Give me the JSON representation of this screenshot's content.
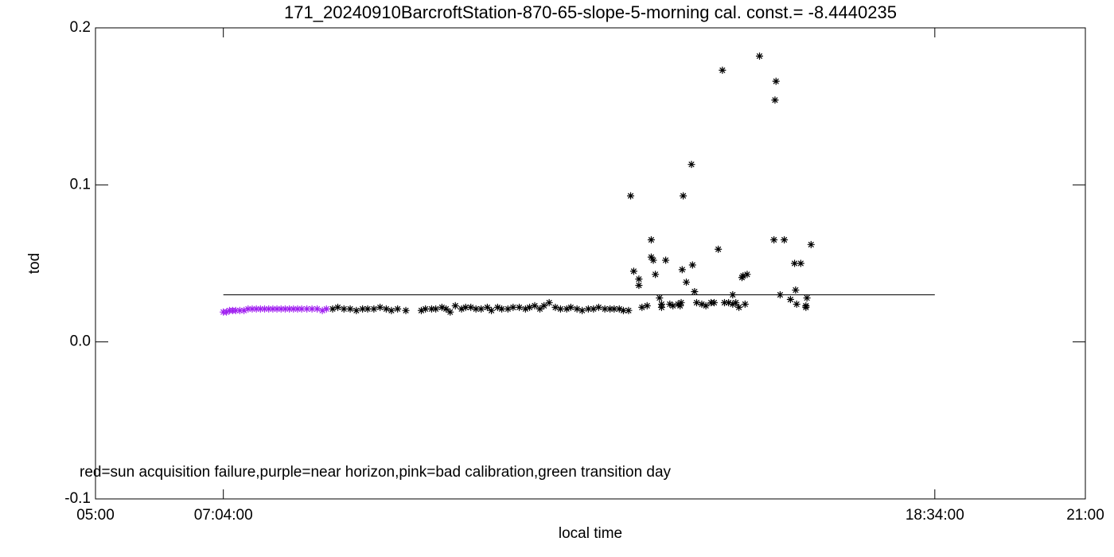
{
  "chart_data": {
    "type": "scatter",
    "title": "171_20240910BarcroftStation-870-65-slope-5-morning cal. const.= -8.4440235",
    "x_label": "local time",
    "y_label": "tod",
    "annotation": "red=sun acquisition failure,purple=near horizon,pink=bad calibration,green transition day",
    "xlim": [
      300,
      1260
    ],
    "ylim": [
      -0.1,
      0.2
    ],
    "xticks": [
      {
        "value": 300,
        "label": "05:00"
      },
      {
        "value": 424,
        "label": "07:04:00"
      },
      {
        "value": 1114,
        "label": "18:34:00"
      },
      {
        "value": 1260,
        "label": "21:00"
      }
    ],
    "yticks": [
      -0.1,
      {
        "value": 0,
        "label": "0.0"
      },
      0.1,
      0.2
    ],
    "series": [
      {
        "type": "line",
        "color": "#000000",
        "x": [
          424,
          1114
        ],
        "values": [
          0.03,
          0.03
        ]
      },
      {
        "type": "scatter",
        "color": "#000000",
        "x": [
          530,
          535,
          541,
          547,
          553,
          559,
          564,
          570,
          576,
          582,
          587,
          593,
          601,
          616,
          620,
          626,
          630,
          636,
          640,
          644,
          649,
          655,
          659,
          664,
          669,
          674,
          680,
          684,
          690,
          694,
          700,
          705,
          711,
          717,
          721,
          726,
          731,
          735,
          740,
          746,
          751,
          757,
          761,
          767,
          772,
          778,
          783,
          788,
          794,
          799,
          803,
          808,
          812,
          817,
          819,
          822,
          827,
          827,
          830,
          835,
          839,
          839,
          841,
          843,
          847,
          849,
          849,
          853,
          857,
          860,
          865,
          867,
          868,
          869,
          870,
          873,
          878,
          879,
          881,
          883,
          888,
          892,
          897,
          900,
          904,
          908,
          910,
          914,
          918,
          918,
          921,
          924,
          927,
          928,
          930,
          932,
          944,
          958,
          959,
          960,
          964,
          968,
          974,
          978,
          979,
          980,
          984,
          989,
          989,
          990,
          994
        ],
        "values": [
          0.021,
          0.022,
          0.021,
          0.021,
          0.02,
          0.021,
          0.021,
          0.021,
          0.022,
          0.021,
          0.02,
          0.021,
          0.02,
          0.02,
          0.021,
          0.021,
          0.021,
          0.022,
          0.021,
          0.019,
          0.023,
          0.021,
          0.022,
          0.022,
          0.021,
          0.021,
          0.022,
          0.02,
          0.022,
          0.021,
          0.021,
          0.022,
          0.022,
          0.021,
          0.022,
          0.023,
          0.021,
          0.023,
          0.025,
          0.022,
          0.021,
          0.021,
          0.022,
          0.021,
          0.02,
          0.021,
          0.021,
          0.022,
          0.021,
          0.021,
          0.021,
          0.021,
          0.02,
          0.02,
          0.093,
          0.045,
          0.04,
          0.036,
          0.022,
          0.023,
          0.065,
          0.054,
          0.052,
          0.043,
          0.028,
          0.022,
          0.024,
          0.052,
          0.024,
          0.023,
          0.024,
          0.023,
          0.025,
          0.046,
          0.093,
          0.038,
          0.113,
          0.049,
          0.032,
          0.025,
          0.024,
          0.023,
          0.025,
          0.025,
          0.059,
          0.173,
          0.025,
          0.025,
          0.024,
          0.03,
          0.025,
          0.022,
          0.041,
          0.042,
          0.024,
          0.043,
          0.182,
          0.065,
          0.154,
          0.166,
          0.03,
          0.065,
          0.027,
          0.05,
          0.033,
          0.024,
          0.05,
          0.023,
          0.022,
          0.028,
          0.062
        ]
      },
      {
        "type": "scatter",
        "color": "#a020f0",
        "x": [
          424,
          427,
          430,
          433,
          436,
          440,
          444,
          448,
          452,
          456,
          460,
          464,
          468,
          472,
          476,
          480,
          484,
          488,
          492,
          496,
          500,
          505,
          510,
          515,
          520,
          524
        ],
        "values": [
          0.019,
          0.019,
          0.02,
          0.02,
          0.02,
          0.02,
          0.02,
          0.021,
          0.021,
          0.021,
          0.021,
          0.021,
          0.021,
          0.021,
          0.021,
          0.021,
          0.021,
          0.021,
          0.021,
          0.021,
          0.021,
          0.021,
          0.021,
          0.021,
          0.02,
          0.021
        ]
      }
    ]
  }
}
